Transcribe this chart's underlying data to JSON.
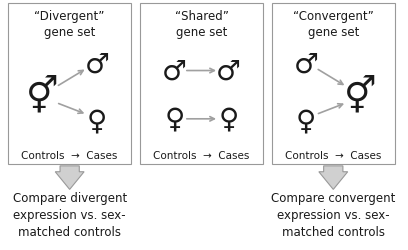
{
  "panels": [
    {
      "title": "“Divergent”\ngene set",
      "type": "divergent",
      "caption": "Compare divergent\nexpression vs. sex-\nmatched controls",
      "has_arrow_below": true
    },
    {
      "title": "“Shared”\ngene set",
      "type": "shared",
      "caption": null,
      "has_arrow_below": false
    },
    {
      "title": "“Convergent”\ngene set",
      "type": "convergent",
      "caption": "Compare convergent\nexpression vs. sex-\nmatched controls",
      "has_arrow_below": true
    }
  ],
  "background_color": "#ffffff",
  "box_edge_color": "#999999",
  "symbol_color": "#1a1a1a",
  "arrow_color": "#a0a0a0",
  "text_color": "#1a1a1a",
  "title_fontsize": 8.5,
  "label_fontsize": 7.5,
  "caption_fontsize": 8.5,
  "symbol_fontsize_large": 22,
  "symbol_fontsize_small": 16
}
